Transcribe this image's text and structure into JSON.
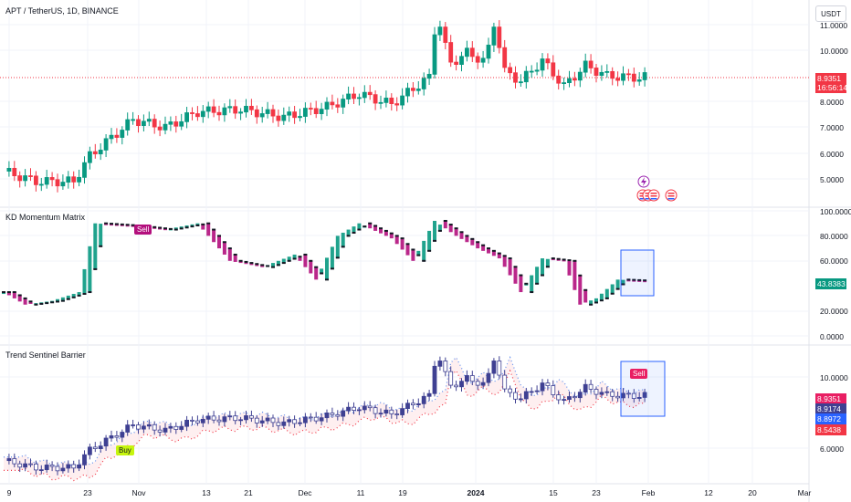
{
  "header": {
    "symbol_title": "APT / TetherUS, 1D, BINANCE",
    "currency_button": "USDT"
  },
  "colors": {
    "up": "#089981",
    "down": "#f23645",
    "kd_up": "#089981",
    "kd_down": "#b30f7d",
    "tsb_candle": "#3f4092",
    "band_upper": "#5b8def",
    "band_lower": "#f23645",
    "box": "#2962ff"
  },
  "main_pane": {
    "y_ticks": [
      "11.0000",
      "10.0000",
      "8.0000",
      "7.0000",
      "6.0000",
      "5.0000"
    ],
    "last_price": "8.9351",
    "countdown": "16:56:14",
    "event_icons": [
      "lightning-icon",
      "flag-us-icon",
      "flag-us-icon",
      "flag-us-icon",
      "flag-us-icon"
    ]
  },
  "kd_pane": {
    "title": "KD Momentum Matrix",
    "y_ticks": [
      "100.0000",
      "80.0000",
      "60.0000",
      "20.0000",
      "0.0000"
    ],
    "last_value": "43.8383",
    "signal_label": "Sell"
  },
  "tsb_pane": {
    "title": "Trend Sentinel Barrier",
    "y_ticks": [
      "10.0000",
      "6.0000"
    ],
    "values": [
      "8.9351",
      "8.9174",
      "8.8972",
      "8.5438"
    ],
    "buy_label": "Buy",
    "sell_label": "Sell"
  },
  "x_axis": {
    "labels": [
      {
        "text": "9",
        "bold": false
      },
      {
        "text": "23",
        "bold": false
      },
      {
        "text": "Nov",
        "bold": false
      },
      {
        "text": "13",
        "bold": false
      },
      {
        "text": "21",
        "bold": false
      },
      {
        "text": "Dec",
        "bold": false
      },
      {
        "text": "11",
        "bold": false
      },
      {
        "text": "19",
        "bold": false
      },
      {
        "text": "2024",
        "bold": true
      },
      {
        "text": "15",
        "bold": false
      },
      {
        "text": "23",
        "bold": false
      },
      {
        "text": "Feb",
        "bold": false
      },
      {
        "text": "12",
        "bold": false
      },
      {
        "text": "20",
        "bold": false
      },
      {
        "text": "Mar",
        "bold": false
      }
    ]
  }
}
